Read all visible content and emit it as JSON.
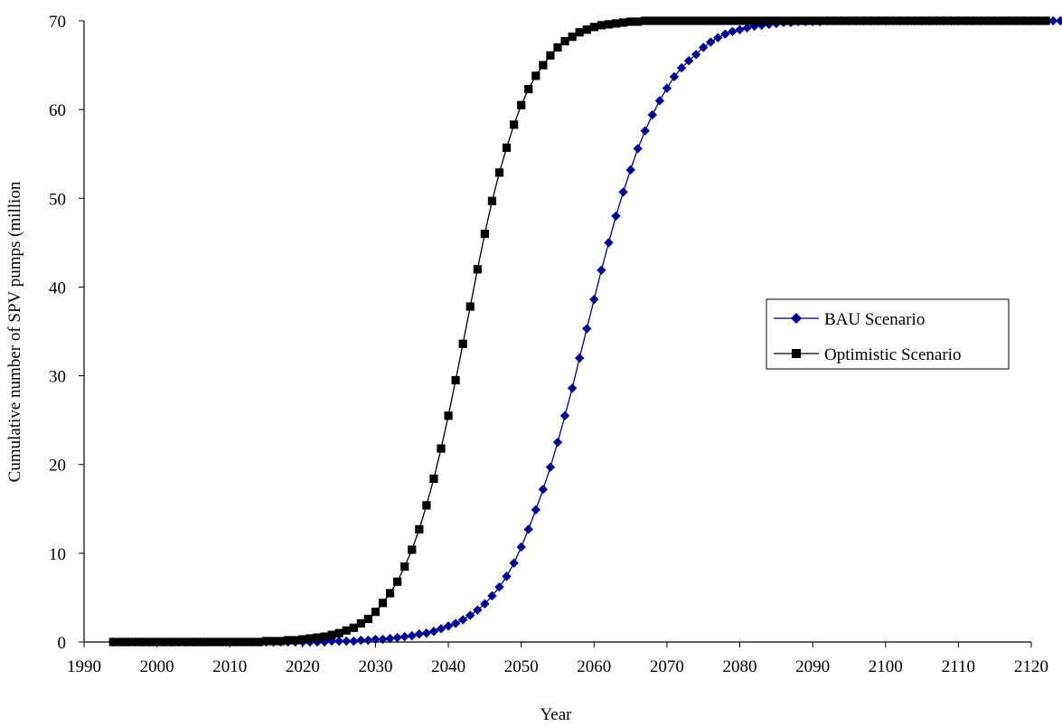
{
  "chart_data": {
    "type": "line",
    "title": "",
    "xlabel": "Year",
    "ylabel": "Cumulative number of SPV pumps (million",
    "xlim": [
      1990,
      2120
    ],
    "ylim": [
      0,
      70
    ],
    "xticks": [
      "1990",
      "2000",
      "2010",
      "2020",
      "2030",
      "2040",
      "2050",
      "2060",
      "2070",
      "2080",
      "2090",
      "2100",
      "2110",
      "2120"
    ],
    "yticks": [
      "0",
      "10",
      "20",
      "30",
      "40",
      "50",
      "60",
      "70"
    ],
    "grid": false,
    "legend_position": "right",
    "series": [
      {
        "name": "BAU Scenario",
        "color": "#00008B",
        "marker": "diamond",
        "x_start": 1994,
        "x_end": 2120,
        "values": [
          0,
          0,
          0,
          0,
          0,
          0,
          0,
          0,
          0,
          0,
          0,
          0,
          0,
          0,
          0,
          0,
          0,
          0,
          0,
          0,
          0,
          0,
          0,
          0,
          0,
          0,
          0,
          0,
          0,
          0,
          0.1,
          0.1,
          0.1,
          0.1,
          0.2,
          0.2,
          0.3,
          0.3,
          0.4,
          0.5,
          0.6,
          0.7,
          0.9,
          1.0,
          1.2,
          1.5,
          1.8,
          2.1,
          2.5,
          3.0,
          3.6,
          4.3,
          5.2,
          6.2,
          7.4,
          8.9,
          10.7,
          12.7,
          14.9,
          17.2,
          19.7,
          22.5,
          25.5,
          28.6,
          32.0,
          35.3,
          38.6,
          41.9,
          45.0,
          48.0,
          50.7,
          53.2,
          55.6,
          57.6,
          59.4,
          61.0,
          62.4,
          63.7,
          64.7,
          65.5,
          66.2,
          67.0,
          67.6,
          68.1,
          68.5,
          68.8,
          69.0,
          69.2,
          69.4,
          69.5,
          69.6,
          69.7,
          69.8,
          69.8,
          69.9,
          69.9,
          69.9,
          69.9,
          70,
          70,
          70,
          70,
          70,
          70,
          70,
          70,
          70,
          70,
          70,
          70,
          70,
          70,
          70,
          70,
          70,
          70,
          70,
          70,
          70,
          70,
          70,
          70,
          70,
          70,
          70,
          70,
          70,
          70,
          70,
          70,
          70
        ]
      },
      {
        "name": "Optimistic Scenario",
        "color": "#000000",
        "marker": "square",
        "x_start": 1994,
        "x_end": 2120,
        "values": [
          0,
          0,
          0,
          0,
          0,
          0,
          0,
          0,
          0,
          0,
          0,
          0,
          0,
          0,
          0,
          0,
          0,
          0,
          0,
          0,
          0,
          0.1,
          0.1,
          0.1,
          0.2,
          0.2,
          0.3,
          0.4,
          0.5,
          0.6,
          0.8,
          1.0,
          1.3,
          1.6,
          2.1,
          2.6,
          3.4,
          4.4,
          5.5,
          6.8,
          8.5,
          10.4,
          12.7,
          15.4,
          18.4,
          21.8,
          25.5,
          29.5,
          33.6,
          37.8,
          42.0,
          46.0,
          49.7,
          52.9,
          55.7,
          58.3,
          60.5,
          62.3,
          63.8,
          65.0,
          66.1,
          67.0,
          67.7,
          68.2,
          68.7,
          69.0,
          69.3,
          69.5,
          69.6,
          69.7,
          69.8,
          69.9,
          69.9,
          70,
          70,
          70,
          70,
          70,
          70,
          70,
          70,
          70,
          70,
          70,
          70,
          70,
          70,
          70,
          70,
          70,
          70,
          70,
          70,
          70,
          70,
          70,
          70,
          70,
          70,
          70,
          70,
          70,
          70,
          70,
          70,
          70,
          70,
          70,
          70,
          70,
          70,
          70,
          70,
          70,
          70,
          70,
          70,
          70,
          70,
          70,
          70,
          70,
          70,
          70,
          70,
          70,
          70,
          70,
          70
        ]
      }
    ]
  }
}
